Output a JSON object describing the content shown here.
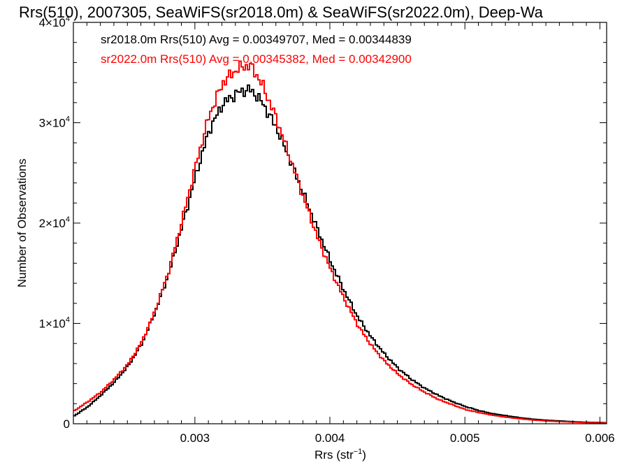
{
  "chart_data": {
    "type": "line",
    "title": "Rrs(510), 2007305, SeaWiFS(sr2018.0m) & SeaWiFS(sr2022.0m), Deep-Wa",
    "xlabel": "Rrs (str",
    "xlabel_sup": "−1",
    "xlabel_end": ")",
    "ylabel": "Number of Observations",
    "xlim": [
      0.0021,
      0.00605
    ],
    "ylim": [
      0,
      40000
    ],
    "grid": false,
    "x_ticks": [
      {
        "value": 0.003,
        "label": "0.003"
      },
      {
        "value": 0.004,
        "label": "0.004"
      },
      {
        "value": 0.005,
        "label": "0.005"
      },
      {
        "value": 0.006,
        "label": "0.006"
      }
    ],
    "y_ticks": [
      {
        "value": 0,
        "label": "0",
        "sup": ""
      },
      {
        "value": 10000,
        "label": "1×10",
        "sup": "4"
      },
      {
        "value": 20000,
        "label": "2×10",
        "sup": "4"
      },
      {
        "value": 30000,
        "label": "3×10",
        "sup": "4"
      },
      {
        "value": 40000,
        "label": "4×10",
        "sup": "4"
      }
    ],
    "annotations": [
      {
        "text": "sr2018.0m Rrs(510) Avg = 0.00349707, Med = 0.00344839",
        "color": "#000000"
      },
      {
        "text": "sr2022.0m Rrs(510) Avg = 0.00345382, Med = 0.00342900",
        "color": "#ff0000"
      }
    ],
    "series": [
      {
        "color": "#000000",
        "x": [
          0.0021,
          0.0022,
          0.0023,
          0.0024,
          0.0025,
          0.0026,
          0.0027,
          0.0028,
          0.0029,
          0.003,
          0.0031,
          0.0032,
          0.0033,
          0.00335,
          0.0034,
          0.00345,
          0.0035,
          0.0036,
          0.0037,
          0.0038,
          0.0039,
          0.004,
          0.0041,
          0.0042,
          0.0043,
          0.0044,
          0.0045,
          0.0046,
          0.0047,
          0.0048,
          0.0049,
          0.005,
          0.0051,
          0.0052,
          0.0053,
          0.0054,
          0.0055,
          0.0056,
          0.0057,
          0.0058,
          0.0059,
          0.00605
        ],
        "y": [
          800,
          1700,
          2900,
          4200,
          5800,
          8000,
          11200,
          15000,
          19800,
          24800,
          29300,
          31900,
          32900,
          33200,
          33300,
          32700,
          31800,
          29400,
          26200,
          22800,
          19400,
          16100,
          13200,
          10600,
          8600,
          6900,
          5500,
          4400,
          3500,
          2800,
          2200,
          1700,
          1300,
          1000,
          800,
          600,
          450,
          350,
          280,
          200,
          150,
          100
        ]
      },
      {
        "color": "#ff0000",
        "x": [
          0.0021,
          0.0022,
          0.0023,
          0.0024,
          0.0025,
          0.0026,
          0.0027,
          0.0028,
          0.0029,
          0.003,
          0.0031,
          0.0032,
          0.0033,
          0.00335,
          0.0034,
          0.00345,
          0.0035,
          0.0036,
          0.0037,
          0.0038,
          0.0039,
          0.004,
          0.0041,
          0.0042,
          0.0043,
          0.0044,
          0.0045,
          0.0046,
          0.0047,
          0.0048,
          0.0049,
          0.005,
          0.0051,
          0.0052,
          0.0053,
          0.0054,
          0.0055,
          0.0056,
          0.0057,
          0.0058,
          0.0059,
          0.00605
        ],
        "y": [
          1300,
          2200,
          3200,
          4500,
          6000,
          8200,
          11300,
          15300,
          20400,
          25800,
          30800,
          34000,
          35300,
          35600,
          35700,
          34800,
          33500,
          30300,
          26400,
          22400,
          18600,
          15300,
          12400,
          9800,
          7800,
          6200,
          4900,
          3900,
          3100,
          2400,
          1900,
          1400,
          1100,
          850,
          650,
          500,
          370,
          280,
          210,
          160,
          110,
          70
        ]
      }
    ]
  }
}
